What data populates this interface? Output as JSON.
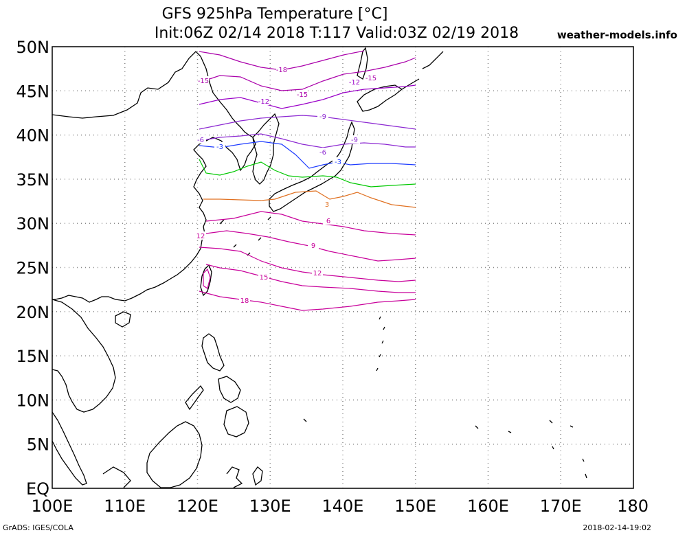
{
  "header": {
    "title_line1": "GFS 925hPa Temperature [°C]",
    "title_line2": "Init:06Z 02/14 2018 T:117 Valid:03Z 02/19 2018",
    "credit": "weather-models.info"
  },
  "footer": {
    "software": "GrADS: IGES/COLA",
    "timestamp": "2018-02-14-19:02"
  },
  "map": {
    "lon_range": [
      100,
      180
    ],
    "lat_range": [
      0,
      50
    ],
    "y_labels": [
      "50N",
      "45N",
      "40N",
      "35N",
      "30N",
      "25N",
      "20N",
      "15N",
      "10N",
      "5N",
      "EQ"
    ],
    "x_labels": [
      "100E",
      "110E",
      "120E",
      "130E",
      "140E",
      "150E",
      "160E",
      "170E",
      "180"
    ],
    "data_domain": {
      "lon": [
        120,
        150
      ],
      "lat": [
        20,
        50
      ]
    },
    "contours": [
      {
        "level": "-18",
        "color": "#aa00aa"
      },
      {
        "level": "-15",
        "color": "#aa00aa"
      },
      {
        "level": "-12",
        "color": "#9a00c8"
      },
      {
        "level": "-9",
        "color": "#8c28d2"
      },
      {
        "level": "-6",
        "color": "#8c28d2"
      },
      {
        "level": "-3",
        "color": "#1e3cff"
      },
      {
        "level": "0",
        "color": "#00c800"
      },
      {
        "level": "3",
        "color": "#e07020"
      },
      {
        "level": "6",
        "color": "#c8009a"
      },
      {
        "level": "9",
        "color": "#c8009a"
      },
      {
        "level": "12",
        "color": "#c8009a"
      },
      {
        "level": "15",
        "color": "#c8009a"
      },
      {
        "level": "18",
        "color": "#c8009a"
      }
    ]
  }
}
